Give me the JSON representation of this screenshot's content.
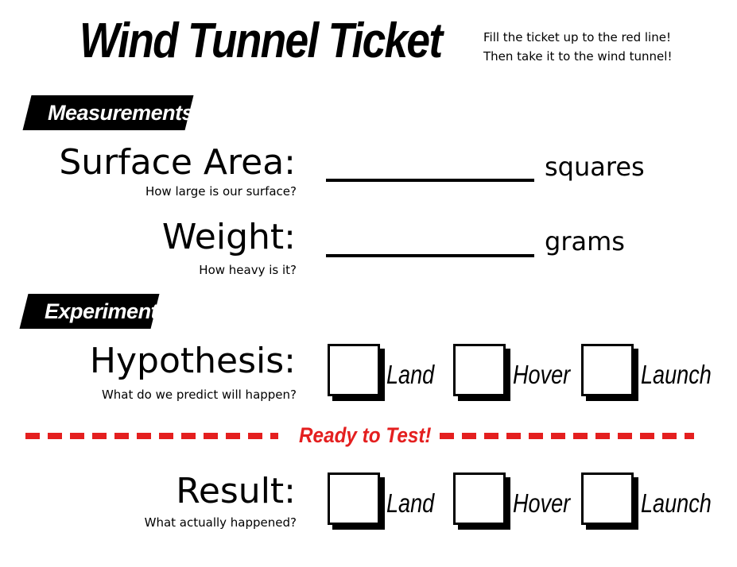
{
  "title": "Wind Tunnel Ticket",
  "instructions": {
    "line1": "Fill the ticket up to the red line!",
    "line2": "Then take it to the wind tunnel!"
  },
  "sections": {
    "measurements": "Measurements",
    "experiment": "Experiment"
  },
  "surface_area": {
    "label": "Surface Area:",
    "hint": "How large is our surface?",
    "unit": "squares"
  },
  "weight": {
    "label": "Weight:",
    "hint": "How heavy is it?",
    "unit": "grams"
  },
  "hypothesis": {
    "label": "Hypothesis:",
    "hint": "What do we predict will happen?",
    "options": [
      "Land",
      "Hover",
      "Launch"
    ]
  },
  "divider": {
    "text": "Ready to Test!",
    "color": "#e41f1f"
  },
  "result": {
    "label": "Result:",
    "hint": "What actually happened?",
    "options": [
      "Land",
      "Hover",
      "Launch"
    ]
  }
}
